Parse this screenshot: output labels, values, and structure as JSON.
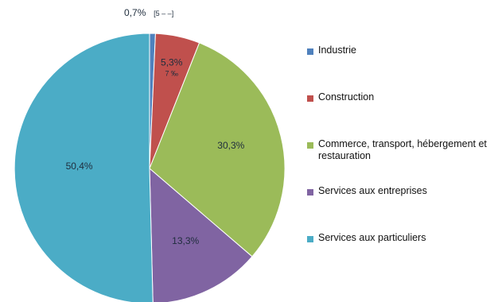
{
  "chart_data": {
    "type": "pie",
    "slices": [
      {
        "name": "Industrie",
        "percent": 0.7,
        "percent_label": "0,7%",
        "count_label": "[5 – –]",
        "color": "#4f81bd"
      },
      {
        "name": "Construction",
        "percent": 5.3,
        "percent_label": "5,3%",
        "count_label": "7 ‰",
        "color": "#c0504d"
      },
      {
        "name": "Commerce, transport, hébergement et restauration",
        "percent": 30.3,
        "percent_label": "30,3%",
        "count_label": "",
        "color": "#9bbb59"
      },
      {
        "name": "Services aux entreprises",
        "percent": 13.3,
        "percent_label": "13,3%",
        "count_label": "",
        "color": "#8064a2"
      },
      {
        "name": "Services aux particuliers",
        "percent": 50.4,
        "percent_label": "50,4%",
        "count_label": "",
        "color": "#4bacc6"
      }
    ],
    "legend_position": "right"
  }
}
